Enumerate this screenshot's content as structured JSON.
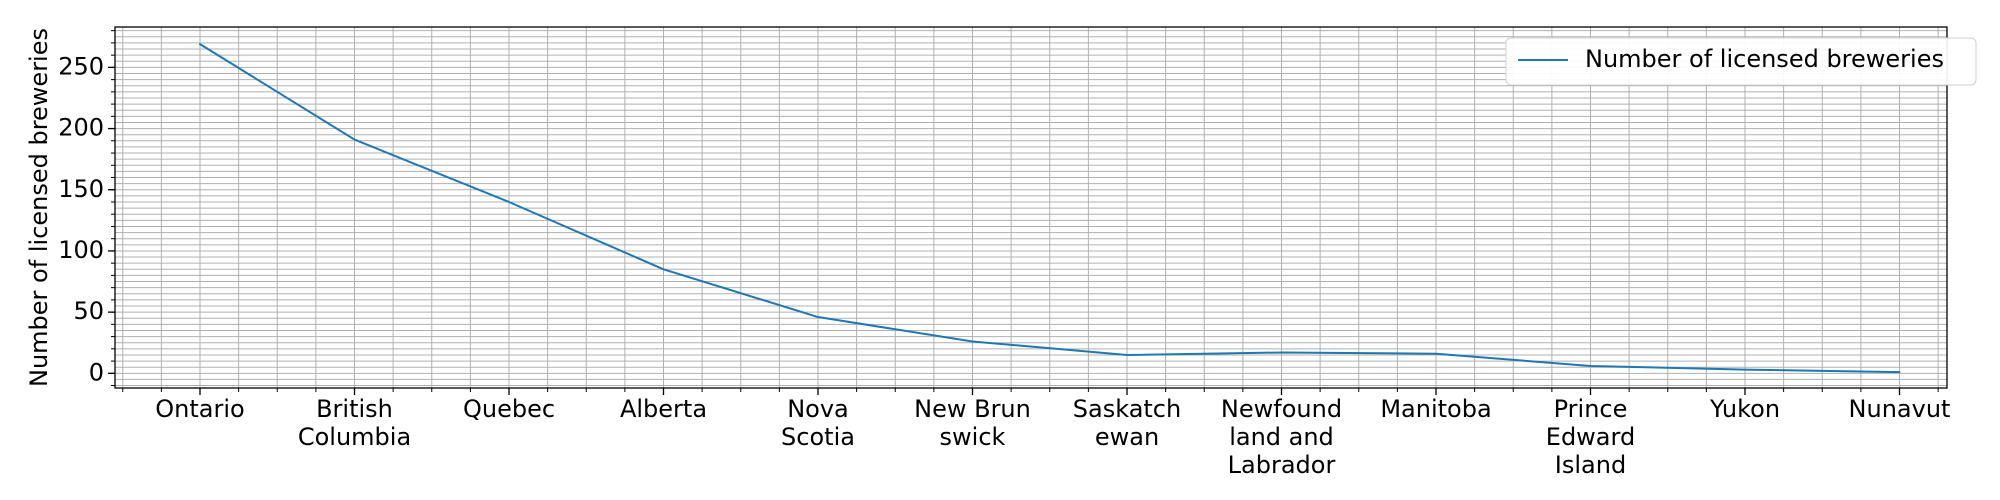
{
  "chart_data": {
    "type": "line",
    "title": "",
    "xlabel": "",
    "ylabel": "Number of licensed breweries",
    "categories": [
      [
        "Ontario"
      ],
      [
        "British",
        "Columbia"
      ],
      [
        "Quebec"
      ],
      [
        "Alberta"
      ],
      [
        "Nova",
        "Scotia"
      ],
      [
        "New Brun",
        "swick"
      ],
      [
        "Saskatch",
        "ewan"
      ],
      [
        "Newfound",
        "land and",
        "Labrador"
      ],
      [
        "Manitoba"
      ],
      [
        "Prince",
        "Edward",
        "Island"
      ],
      [
        "Yukon"
      ],
      [
        "Nunavut"
      ]
    ],
    "series": [
      {
        "name": "Number of licensed breweries",
        "color": "#1f77b4",
        "values": [
          269,
          191,
          140,
          85,
          46,
          26,
          15,
          17,
          16,
          6,
          3,
          1
        ]
      }
    ],
    "ylim": [
      -12,
      283
    ],
    "yticks": [
      0,
      50,
      100,
      150,
      200,
      250
    ],
    "grid": true,
    "legend_position": "top-right"
  }
}
